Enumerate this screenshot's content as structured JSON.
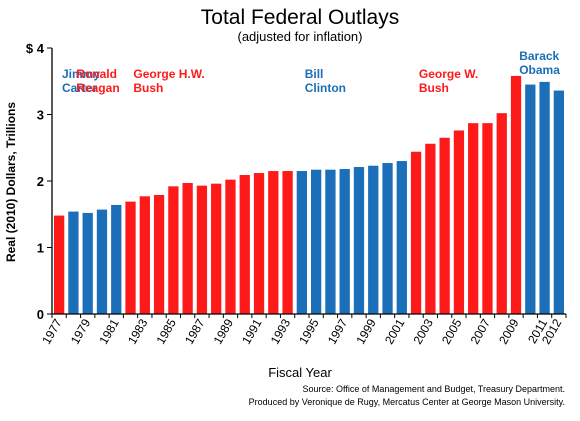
{
  "colors": {
    "democrat": "#1a6fb8",
    "republican": "#ff1a1a",
    "axis": "#000000"
  },
  "chart_data": {
    "type": "bar",
    "title": "Total Federal Outlays",
    "subtitle": "(adjusted for inflation)",
    "xlabel": "Fiscal Year",
    "ylabel": "Real (2010) Dollars, Trillions",
    "ylim": [
      0,
      4
    ],
    "yticks": [
      "0",
      "1",
      "2",
      "3",
      "$ 4"
    ],
    "grid": false,
    "categories": [
      "1977",
      "1978",
      "1979",
      "1980",
      "1981",
      "1982",
      "1983",
      "1984",
      "1985",
      "1986",
      "1987",
      "1988",
      "1989",
      "1990",
      "1991",
      "1992",
      "1993",
      "1994",
      "1995",
      "1996",
      "1997",
      "1998",
      "1999",
      "2000",
      "2001",
      "2002",
      "2003",
      "2004",
      "2005",
      "2006",
      "2007",
      "2008",
      "2009",
      "2010",
      "2011",
      "2012"
    ],
    "x_tick_labels": [
      "1977",
      "1979",
      "1981",
      "1983",
      "1985",
      "1987",
      "1989",
      "1991",
      "1993",
      "1995",
      "1997",
      "1999",
      "2001",
      "2003",
      "2005",
      "2007",
      "2009",
      "2011",
      "2012"
    ],
    "values": [
      1.48,
      1.54,
      1.52,
      1.57,
      1.64,
      1.69,
      1.77,
      1.79,
      1.92,
      1.97,
      1.93,
      1.96,
      2.02,
      2.09,
      2.12,
      2.15,
      2.15,
      2.15,
      2.17,
      2.17,
      2.18,
      2.21,
      2.23,
      2.27,
      2.3,
      2.44,
      2.56,
      2.65,
      2.76,
      2.87,
      2.87,
      3.02,
      3.58,
      3.45,
      3.49,
      3.36
    ],
    "party": [
      "R",
      "D",
      "D",
      "D",
      "D",
      "R",
      "R",
      "R",
      "R",
      "R",
      "R",
      "R",
      "R",
      "R",
      "R",
      "R",
      "R",
      "D",
      "D",
      "D",
      "D",
      "D",
      "D",
      "D",
      "D",
      "R",
      "R",
      "R",
      "R",
      "R",
      "R",
      "R",
      "R",
      "D",
      "D",
      "D"
    ],
    "annotations": [
      {
        "line1": "Jimmy",
        "line2": "Carter",
        "party": "D"
      },
      {
        "line1": "Ronald",
        "line2": "Reagan",
        "party": "R"
      },
      {
        "line1": "George H.W.",
        "line2": "Bush",
        "party": "R"
      },
      {
        "line1": "Bill",
        "line2": "Clinton",
        "party": "D"
      },
      {
        "line1": "George W.",
        "line2": "Bush",
        "party": "R"
      },
      {
        "line1": "Barack",
        "line2": "Obama",
        "party": "D"
      }
    ]
  },
  "source": {
    "line1": "Source: Office of Management and Budget, Treasury Department.",
    "line2": "Produced by Veronique de Rugy, Mercatus Center at George Mason University."
  }
}
